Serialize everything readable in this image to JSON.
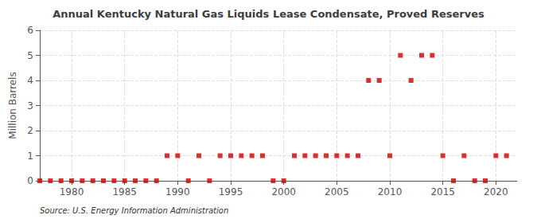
{
  "chart_data": {
    "type": "scatter",
    "title": "Annual Kentucky Natural Gas Liquids Lease Condensate, Proved Reserves",
    "ylabel": "Million Barrels",
    "annotation": "Source: U.S. Energy Information Administration",
    "x": [
      1977,
      1978,
      1979,
      1980,
      1981,
      1982,
      1983,
      1984,
      1985,
      1986,
      1987,
      1988,
      1989,
      1990,
      1991,
      1992,
      1993,
      1994,
      1995,
      1996,
      1997,
      1998,
      1999,
      2000,
      2001,
      2002,
      2003,
      2004,
      2005,
      2006,
      2007,
      2008,
      2009,
      2010,
      2011,
      2012,
      2013,
      2014,
      2015,
      2016,
      2017,
      2018,
      2019,
      2020,
      2021
    ],
    "values": [
      0,
      0,
      0,
      0,
      0,
      0,
      0,
      0,
      0,
      0,
      0,
      0,
      1,
      1,
      0,
      1,
      0,
      1,
      1,
      1,
      1,
      1,
      0,
      0,
      1,
      1,
      1,
      1,
      1,
      1,
      1,
      4,
      4,
      1,
      5,
      4,
      5,
      5,
      1,
      0,
      1,
      0,
      0,
      1,
      1
    ],
    "color": "#cc0000",
    "marker": "square",
    "xlim": [
      1977,
      2022
    ],
    "ylim": [
      0,
      6
    ],
    "xticks": [
      1980,
      1985,
      1990,
      1995,
      2000,
      2005,
      2010,
      2015,
      2020
    ],
    "yticks": [
      0,
      1,
      2,
      3,
      4,
      5,
      6
    ],
    "grid": true
  }
}
